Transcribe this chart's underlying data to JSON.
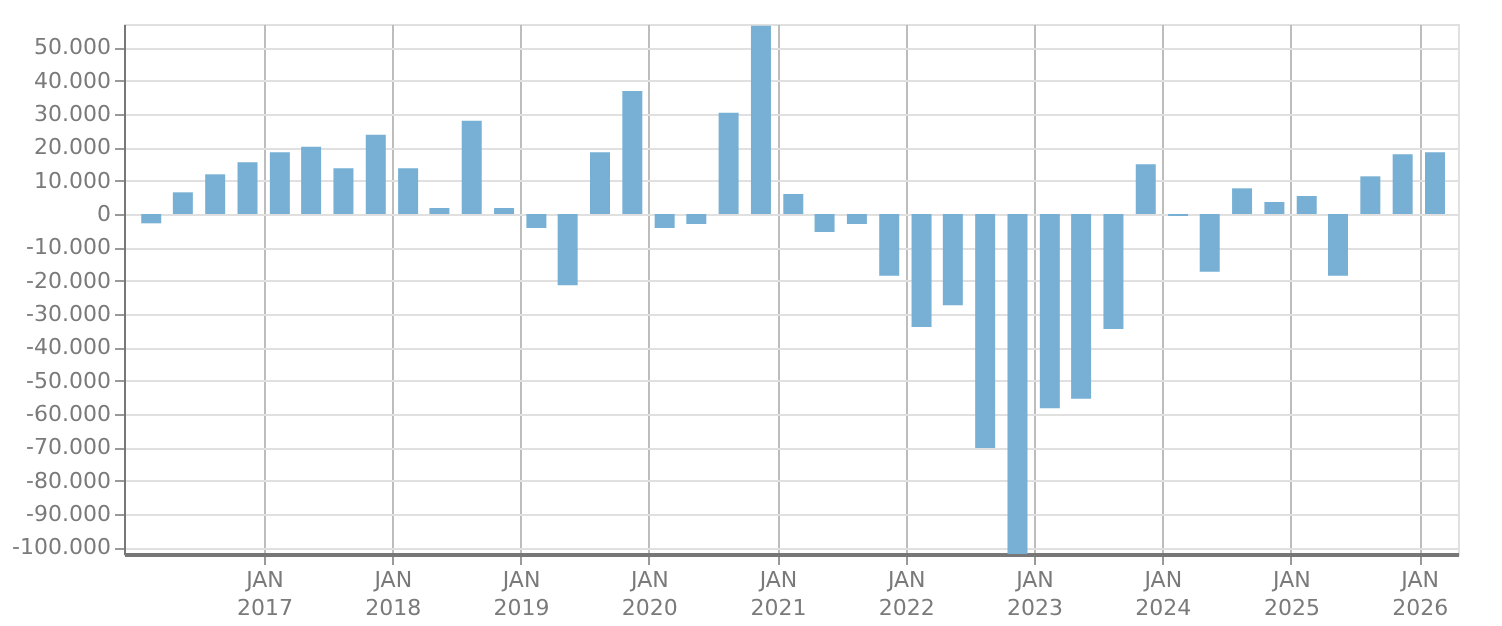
{
  "chart_data": {
    "type": "bar",
    "x": [
      "2016-02-15",
      "2016-05-15",
      "2016-08-15",
      "2016-11-15",
      "2017-02-15",
      "2017-05-15",
      "2017-08-15",
      "2017-11-15",
      "2018-02-15",
      "2018-05-15",
      "2018-08-15",
      "2018-11-15",
      "2019-02-15",
      "2019-05-15",
      "2019-08-15",
      "2019-11-15",
      "2020-02-15",
      "2020-05-15",
      "2020-08-15",
      "2020-11-15",
      "2021-02-15",
      "2021-05-15",
      "2021-08-15",
      "2021-11-15",
      "2022-02-15",
      "2022-05-15",
      "2022-08-15",
      "2022-11-15",
      "2023-02-15",
      "2023-05-15",
      "2023-08-15",
      "2023-11-15",
      "2024-02-15",
      "2024-05-15",
      "2024-08-15",
      "2024-11-15",
      "2025-02-15",
      "2025-05-15",
      "2025-08-15",
      "2025-11-15",
      "2026-02-15"
    ],
    "series": [
      {
        "color": "#77b0d4",
        "values": [
          -2800,
          6500,
          11900,
          15500,
          18500,
          20200,
          13700,
          23800,
          13700,
          1800,
          28000,
          1800,
          -4200,
          -21400,
          18500,
          36900,
          -4200,
          -3000,
          30400,
          56500,
          6000,
          -5400,
          -3000,
          -18500,
          -33900,
          -27400,
          -70200,
          -102000,
          -58300,
          -55400,
          -34500,
          14900,
          -600,
          -17300,
          7700,
          3600,
          5400,
          -18500,
          11300,
          17900,
          18500
        ]
      }
    ],
    "xlim": [
      "2015-12-28",
      "2026-03-24"
    ],
    "xticks": [
      {
        "value": "2017-01-01",
        "label": "JAN\n2017"
      },
      {
        "value": "2018-01-01",
        "label": "JAN\n2018"
      },
      {
        "value": "2019-01-01",
        "label": "JAN\n2019"
      },
      {
        "value": "2020-01-01",
        "label": "JAN\n2020"
      },
      {
        "value": "2021-01-01",
        "label": "JAN\n2021"
      },
      {
        "value": "2022-01-01",
        "label": "JAN\n2022"
      },
      {
        "value": "2023-01-01",
        "label": "JAN\n2023"
      },
      {
        "value": "2024-01-01",
        "label": "JAN\n2024"
      },
      {
        "value": "2025-01-01",
        "label": "JAN\n2025"
      },
      {
        "value": "2026-01-01",
        "label": "JAN\n2026"
      }
    ],
    "ylim": [
      -102000,
      57000
    ],
    "yticks": [
      {
        "value": 50000,
        "label": "50.000"
      },
      {
        "value": 40000,
        "label": "40.000"
      },
      {
        "value": 30000,
        "label": "30.000"
      },
      {
        "value": 20000,
        "label": "20.000"
      },
      {
        "value": 10000,
        "label": "10.000"
      },
      0,
      {
        "value": -10000,
        "label": "-10.000"
      },
      {
        "value": -20000,
        "label": "-20.000"
      },
      {
        "value": -30000,
        "label": "-30.000"
      },
      {
        "value": -40000,
        "label": "-40.000"
      },
      {
        "value": -50000,
        "label": "-50.000"
      },
      {
        "value": -60000,
        "label": "-60.000"
      },
      {
        "value": -70000,
        "label": "-70.000"
      },
      {
        "value": -80000,
        "label": "-80.000"
      },
      {
        "value": -90000,
        "label": "-90.000"
      },
      {
        "value": -100000,
        "label": "-100.000"
      }
    ],
    "grid": true
  }
}
